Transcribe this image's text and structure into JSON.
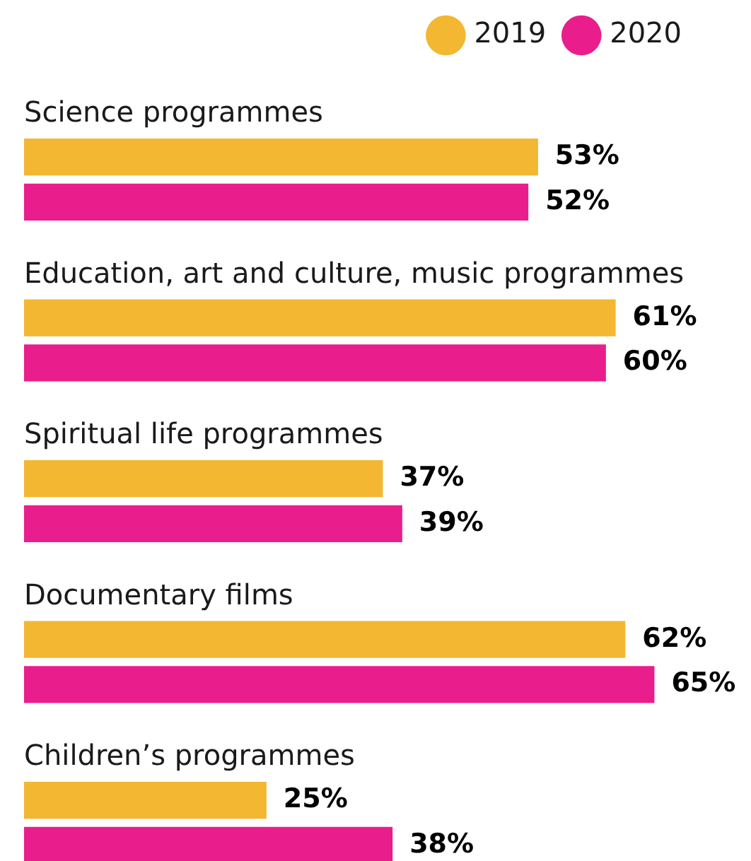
{
  "chart_data": {
    "type": "bar",
    "orientation": "horizontal",
    "categories": [
      "Science programmes",
      "Education, art and culture, music programmes",
      "Spiritual life programmes",
      "Documentary films",
      "Children’s programmes"
    ],
    "series": [
      {
        "name": "2019",
        "color": "#f3b731",
        "values": [
          53,
          61,
          37,
          62,
          25
        ],
        "value_labels": [
          "53%",
          "61%",
          "37%",
          "62%",
          "25%"
        ]
      },
      {
        "name": "2020",
        "color": "#e91e8c",
        "values": [
          52,
          60,
          39,
          65,
          38
        ],
        "value_labels": [
          "52%",
          "60%",
          "39%",
          "65%",
          "38%"
        ]
      }
    ],
    "legend": "top right",
    "tick_labels": "y"
  }
}
